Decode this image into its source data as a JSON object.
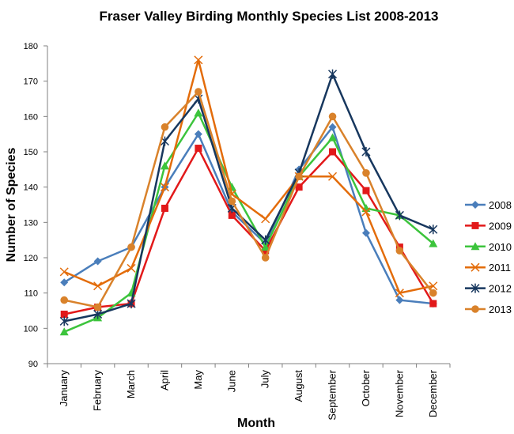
{
  "chart_data": {
    "type": "line",
    "title": "Fraser Valley Birding Monthly Species List 2008-2013",
    "xlabel": "Month",
    "ylabel": "Number of Species",
    "ylim": [
      90,
      180
    ],
    "ytick_step": 10,
    "grid": false,
    "legend_position": "right",
    "categories": [
      "January",
      "February",
      "March",
      "April",
      "May",
      "June",
      "July",
      "August",
      "September",
      "October",
      "November",
      "December"
    ],
    "series": [
      {
        "name": "2008",
        "color": "#4a7ebb",
        "marker": "diamond",
        "values": [
          113,
          119,
          123,
          140,
          155,
          133,
          124,
          145,
          157,
          127,
          108,
          107
        ]
      },
      {
        "name": "2009",
        "color": "#e2191a",
        "marker": "square",
        "values": [
          104,
          106,
          107,
          134,
          151,
          132,
          122,
          140,
          150,
          139,
          123,
          107
        ]
      },
      {
        "name": "2010",
        "color": "#3cc43c",
        "marker": "triangle",
        "values": [
          99,
          103,
          110,
          146,
          161,
          140,
          123,
          143,
          154,
          134,
          132,
          124
        ]
      },
      {
        "name": "2011",
        "color": "#e36c0a",
        "marker": "x",
        "values": [
          116,
          112,
          117,
          140,
          176,
          138,
          131,
          143,
          143,
          133,
          110,
          112
        ]
      },
      {
        "name": "2012",
        "color": "#17375e",
        "marker": "star",
        "values": [
          102,
          104,
          107,
          153,
          165,
          134,
          125,
          144,
          172,
          150,
          132,
          128
        ]
      },
      {
        "name": "2013",
        "color": "#d9822b",
        "marker": "circle",
        "values": [
          108,
          106,
          123,
          157,
          167,
          136,
          120,
          143,
          160,
          144,
          122,
          110
        ]
      }
    ]
  }
}
